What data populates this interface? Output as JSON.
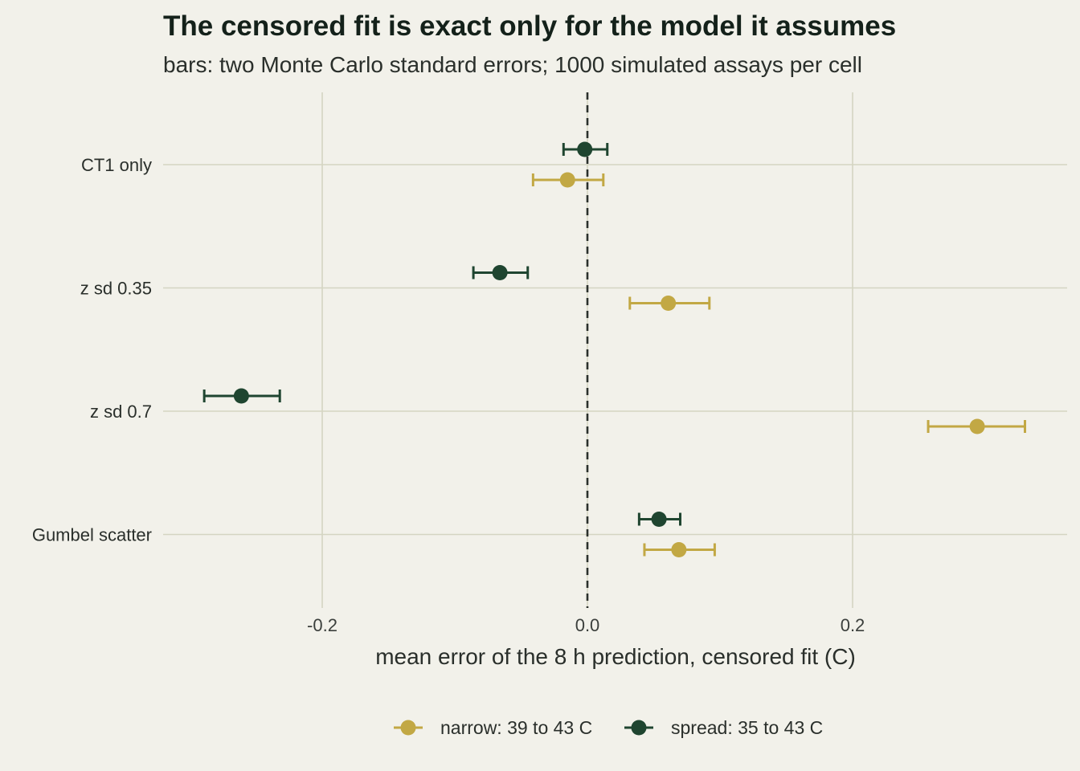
{
  "chart_data": {
    "type": "scatter",
    "subtype": "dot-and-errorbar",
    "title": "The censored fit is exact only for the model it assumes",
    "subtitle": "bars: two Monte Carlo standard errors; 1000 simulated assays per cell",
    "xlabel": "mean error of the 8 h prediction, censored fit (C)",
    "ylabel": "",
    "xlim": [
      -0.31,
      0.36
    ],
    "xticks": [
      -0.2,
      0.0,
      0.2
    ],
    "xtick_labels": [
      "-0.2",
      "0.0",
      "0.2"
    ],
    "reference_line": {
      "x": 0.0,
      "style": "dashed"
    },
    "grid": true,
    "legend_position": "bottom",
    "categories": [
      "CT1 only",
      "z sd 0.35",
      "z sd 0.7",
      "Gumbel scatter"
    ],
    "series": [
      {
        "name": "narrow: 39 to 43 C",
        "color": "#c2a844",
        "points": [
          {
            "category": "CT1 only",
            "x": -0.015,
            "lo": -0.041,
            "hi": 0.012
          },
          {
            "category": "z sd 0.35",
            "x": 0.061,
            "lo": 0.032,
            "hi": 0.092
          },
          {
            "category": "z sd 0.7",
            "x": 0.294,
            "lo": 0.257,
            "hi": 0.33
          },
          {
            "category": "Gumbel scatter",
            "x": 0.069,
            "lo": 0.043,
            "hi": 0.096
          }
        ]
      },
      {
        "name": "spread: 35 to 43 C",
        "color": "#1f4530",
        "points": [
          {
            "category": "CT1 only",
            "x": -0.002,
            "lo": -0.018,
            "hi": 0.015
          },
          {
            "category": "z sd 0.35",
            "x": -0.066,
            "lo": -0.086,
            "hi": -0.045
          },
          {
            "category": "z sd 0.7",
            "x": -0.261,
            "lo": -0.289,
            "hi": -0.232
          },
          {
            "category": "Gumbel scatter",
            "x": 0.054,
            "lo": 0.039,
            "hi": 0.07
          }
        ]
      }
    ]
  }
}
